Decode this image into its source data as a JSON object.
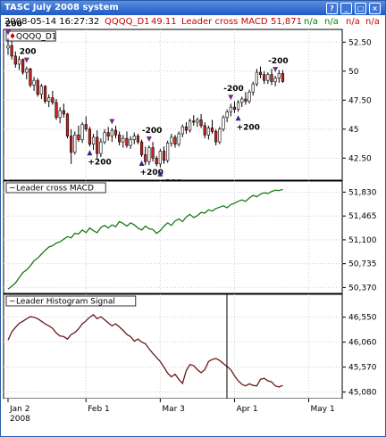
{
  "window": {
    "title": "TASC July 2008 system",
    "buttons": [
      "?",
      "_",
      "□",
      "×"
    ]
  },
  "info_bar": {
    "datetime": "2008-05-14 16:27:32",
    "symbol": "QQQQ_D1",
    "price": "49.11",
    "indicator": "Leader cross MACD",
    "indicator_value": "51,871",
    "na_values": [
      "n/a",
      "n/a",
      "n/a",
      "n/a"
    ],
    "colors": {
      "datetime": "#000000",
      "symbol": "#cc0000",
      "indicator": "#cc0000",
      "na_green": "#008000",
      "na_red": "#cc0000"
    }
  },
  "chart_data": [
    {
      "type": "candlestick",
      "title": "QQQQ_D1",
      "y_ticks": [
        "52.50",
        "50",
        "47.50",
        "45",
        "42.50"
      ],
      "ylim": [
        40.6,
        53.6
      ],
      "grid": true,
      "colors": {
        "up": "#ffffff",
        "down": "#cc2222",
        "wick": "#000000",
        "buy": "#2a2a8a",
        "sell": "#7a2a8a"
      },
      "candles": [
        [
          52.0,
          52.8,
          51.4,
          52.2
        ],
        [
          52.2,
          52.6,
          51.0,
          51.3
        ],
        [
          51.3,
          51.7,
          50.3,
          50.6
        ],
        [
          50.6,
          51.3,
          50.1,
          51.0
        ],
        [
          51.0,
          51.1,
          49.7,
          49.9
        ],
        [
          49.9,
          50.4,
          49.3,
          50.2
        ],
        [
          50.2,
          50.3,
          48.6,
          48.8
        ],
        [
          48.8,
          49.5,
          48.3,
          49.2
        ],
        [
          49.2,
          49.4,
          47.8,
          48.0
        ],
        [
          48.0,
          48.9,
          47.6,
          48.7
        ],
        [
          48.7,
          48.8,
          47.2,
          47.4
        ],
        [
          47.4,
          48.0,
          46.9,
          47.7
        ],
        [
          47.7,
          48.3,
          47.1,
          47.3
        ],
        [
          47.3,
          47.6,
          45.8,
          46.0
        ],
        [
          46.0,
          46.9,
          45.5,
          46.6
        ],
        [
          46.6,
          47.2,
          46.0,
          46.3
        ],
        [
          46.3,
          46.4,
          44.2,
          44.4
        ],
        [
          44.4,
          45.0,
          42.0,
          43.0
        ],
        [
          43.0,
          44.8,
          42.8,
          44.5
        ],
        [
          44.5,
          45.3,
          43.9,
          44.1
        ],
        [
          44.1,
          45.6,
          43.8,
          45.4
        ],
        [
          45.4,
          46.1,
          44.8,
          45.0
        ],
        [
          45.0,
          45.2,
          43.5,
          43.7
        ],
        [
          43.7,
          44.6,
          43.2,
          44.3
        ],
        [
          44.3,
          44.9,
          42.4,
          42.9
        ],
        [
          42.9,
          44.2,
          42.6,
          43.9
        ],
        [
          43.9,
          45.0,
          43.7,
          44.7
        ],
        [
          44.7,
          45.2,
          44.0,
          44.4
        ],
        [
          44.4,
          45.1,
          43.9,
          44.9
        ],
        [
          44.9,
          45.3,
          44.2,
          44.5
        ],
        [
          44.5,
          44.8,
          43.6,
          43.9
        ],
        [
          43.9,
          44.5,
          43.4,
          44.2
        ],
        [
          44.2,
          44.8,
          43.4,
          43.6
        ],
        [
          43.6,
          44.4,
          43.3,
          44.1
        ],
        [
          44.1,
          44.7,
          43.7,
          44.4
        ],
        [
          44.4,
          44.6,
          43.7,
          43.9
        ],
        [
          43.9,
          44.1,
          42.6,
          42.8
        ],
        [
          42.8,
          43.5,
          41.9,
          42.2
        ],
        [
          42.2,
          43.6,
          41.9,
          43.4
        ],
        [
          43.4,
          43.9,
          42.2,
          42.5
        ],
        [
          42.5,
          42.7,
          41.8,
          42.0
        ],
        [
          42.0,
          43.3,
          41.7,
          43.1
        ],
        [
          43.1,
          43.5,
          42.0,
          42.3
        ],
        [
          42.3,
          44.0,
          42.1,
          43.8
        ],
        [
          43.8,
          44.6,
          43.5,
          44.3
        ],
        [
          44.3,
          44.5,
          43.4,
          43.7
        ],
        [
          43.7,
          44.8,
          43.5,
          44.6
        ],
        [
          44.6,
          45.4,
          44.3,
          45.2
        ],
        [
          45.2,
          45.6,
          44.6,
          44.9
        ],
        [
          44.9,
          45.9,
          44.7,
          45.7
        ],
        [
          45.7,
          46.2,
          45.3,
          45.6
        ],
        [
          45.6,
          46.0,
          45.2,
          45.8
        ],
        [
          45.8,
          46.3,
          45.1,
          45.3
        ],
        [
          45.3,
          45.6,
          44.2,
          44.5
        ],
        [
          44.5,
          45.3,
          44.1,
          45.1
        ],
        [
          45.1,
          45.8,
          44.6,
          44.8
        ],
        [
          44.8,
          45.0,
          43.6,
          43.9
        ],
        [
          43.9,
          45.2,
          43.7,
          45.0
        ],
        [
          45.0,
          46.2,
          44.8,
          46.0
        ],
        [
          46.0,
          46.7,
          45.6,
          46.5
        ],
        [
          46.5,
          47.2,
          46.1,
          46.9
        ],
        [
          46.9,
          47.4,
          46.4,
          46.7
        ],
        [
          46.7,
          47.5,
          46.5,
          47.3
        ],
        [
          47.3,
          47.8,
          46.9,
          47.6
        ],
        [
          47.6,
          48.2,
          47.1,
          47.4
        ],
        [
          47.4,
          48.4,
          47.2,
          48.2
        ],
        [
          48.2,
          49.1,
          47.9,
          48.9
        ],
        [
          48.9,
          50.2,
          48.7,
          49.9
        ],
        [
          49.9,
          50.4,
          49.4,
          49.7
        ],
        [
          49.7,
          50.0,
          48.9,
          49.2
        ],
        [
          49.2,
          49.9,
          48.9,
          49.7
        ],
        [
          49.7,
          50.2,
          48.8,
          49.1
        ],
        [
          49.1,
          49.6,
          48.7,
          49.4
        ],
        [
          49.4,
          50.1,
          49.0,
          49.8
        ],
        [
          49.8,
          50.1,
          49.0,
          49.11
        ]
      ],
      "signals": [
        {
          "i": 0,
          "kind": "sell",
          "label": "200"
        },
        {
          "i": 5,
          "kind": "sell",
          "label": "200"
        },
        {
          "i": 22,
          "kind": "buy",
          "label": "+200"
        },
        {
          "i": 28,
          "kind": "sell",
          "label": ""
        },
        {
          "i": 36,
          "kind": "buy",
          "label": "+200"
        },
        {
          "i": 38,
          "kind": "sell",
          "label": "-200"
        },
        {
          "i": 41,
          "kind": "buy",
          "label": "+200"
        },
        {
          "i": 60,
          "kind": "sell",
          "label": "-200"
        },
        {
          "i": 62,
          "kind": "buy",
          "label": "+200"
        },
        {
          "i": 72,
          "kind": "sell",
          "label": "-200"
        }
      ]
    },
    {
      "type": "line",
      "title": "Leader cross MACD",
      "y_ticks": [
        "51,830",
        "51,465",
        "51,100",
        "50,735",
        "50,370"
      ],
      "ylim": [
        50280,
        52000
      ],
      "color": "#1a7a1a",
      "values": [
        50345,
        50390,
        50440,
        50520,
        50600,
        50640,
        50700,
        50780,
        50820,
        50880,
        50940,
        50990,
        51010,
        51050,
        51070,
        51110,
        51150,
        51130,
        51200,
        51190,
        51250,
        51210,
        51280,
        51240,
        51210,
        51290,
        51320,
        51280,
        51330,
        51300,
        51380,
        51350,
        51310,
        51360,
        51330,
        51280,
        51250,
        51310,
        51270,
        51260,
        51200,
        51240,
        51310,
        51360,
        51320,
        51390,
        51420,
        51380,
        51450,
        51490,
        51440,
        51470,
        51520,
        51510,
        51560,
        51540,
        51580,
        51600,
        51620,
        51590,
        51640,
        51660,
        51690,
        51710,
        51690,
        51740,
        51780,
        51760,
        51800,
        51820,
        51810,
        51840,
        51860,
        51855,
        51871
      ]
    },
    {
      "type": "line",
      "title": "Leader Histogram Signal",
      "y_ticks": [
        "46,550",
        "46,060",
        "45,570",
        "45,080"
      ],
      "ylim": [
        44950,
        47000
      ],
      "color": "#6a1a1a",
      "values": [
        46100,
        46260,
        46350,
        46430,
        46470,
        46520,
        46560,
        46550,
        46520,
        46470,
        46420,
        46380,
        46330,
        46240,
        46180,
        46170,
        46120,
        46210,
        46250,
        46320,
        46420,
        46480,
        46550,
        46600,
        46520,
        46560,
        46500,
        46440,
        46380,
        46420,
        46360,
        46290,
        46210,
        46170,
        46080,
        46120,
        46060,
        46030,
        45930,
        45840,
        45760,
        45680,
        45570,
        45450,
        45380,
        45430,
        45330,
        45250,
        45500,
        45620,
        45600,
        45520,
        45460,
        45520,
        45680,
        45720,
        45740,
        45700,
        45640,
        45580,
        45520,
        45400,
        45300,
        45230,
        45200,
        45240,
        45210,
        45200,
        45330,
        45350,
        45300,
        45280,
        45200,
        45180,
        45210
      ]
    }
  ],
  "x_axis": {
    "labels": [
      "Jan 2",
      "Feb 1",
      "Mar 3",
      "Apr 1",
      "May 1"
    ],
    "year": "2008",
    "label_index": [
      0,
      21,
      41,
      61,
      81
    ]
  }
}
